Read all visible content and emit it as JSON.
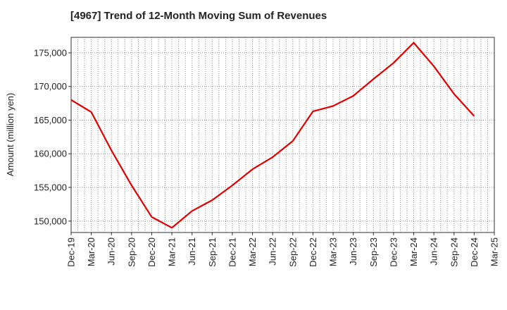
{
  "chart_data": {
    "type": "line",
    "title": "[4967]  Trend of 12-Month Moving Sum of Revenues",
    "ylabel": "Amount (million yen)",
    "xlabel": "",
    "x_ticks": [
      "Dec-19",
      "Mar-20",
      "Jun-20",
      "Sep-20",
      "Dec-20",
      "Mar-21",
      "Jun-21",
      "Sep-21",
      "Dec-21",
      "Mar-22",
      "Jun-22",
      "Sep-22",
      "Dec-22",
      "Mar-23",
      "Jun-23",
      "Sep-23",
      "Dec-23",
      "Mar-24",
      "Jun-24",
      "Sep-24",
      "Dec-24",
      "Mar-25"
    ],
    "y_ticks": [
      "150,000",
      "155,000",
      "160,000",
      "165,000",
      "170,000",
      "175,000"
    ],
    "y_tick_values": [
      150000,
      155000,
      160000,
      165000,
      170000,
      175000
    ],
    "ylim": [
      148300,
      177300
    ],
    "grid": true,
    "series": [
      {
        "color": "#e00000",
        "x": [
          "Dec-19",
          "Mar-20",
          "Jun-20",
          "Sep-20",
          "Dec-20",
          "Mar-21",
          "Jun-21",
          "Sep-21",
          "Dec-21",
          "Mar-22",
          "Jun-22",
          "Sep-22",
          "Dec-22",
          "Mar-23",
          "Jun-23",
          "Sep-23",
          "Dec-23",
          "Mar-24",
          "Jun-24",
          "Sep-24",
          "Dec-24"
        ],
        "values": [
          168000,
          166200,
          160500,
          155300,
          150600,
          149000,
          151500,
          153100,
          155300,
          157700,
          159500,
          161900,
          166300,
          167100,
          168600,
          171100,
          173500,
          176500,
          173000,
          168900,
          165600
        ]
      }
    ]
  }
}
